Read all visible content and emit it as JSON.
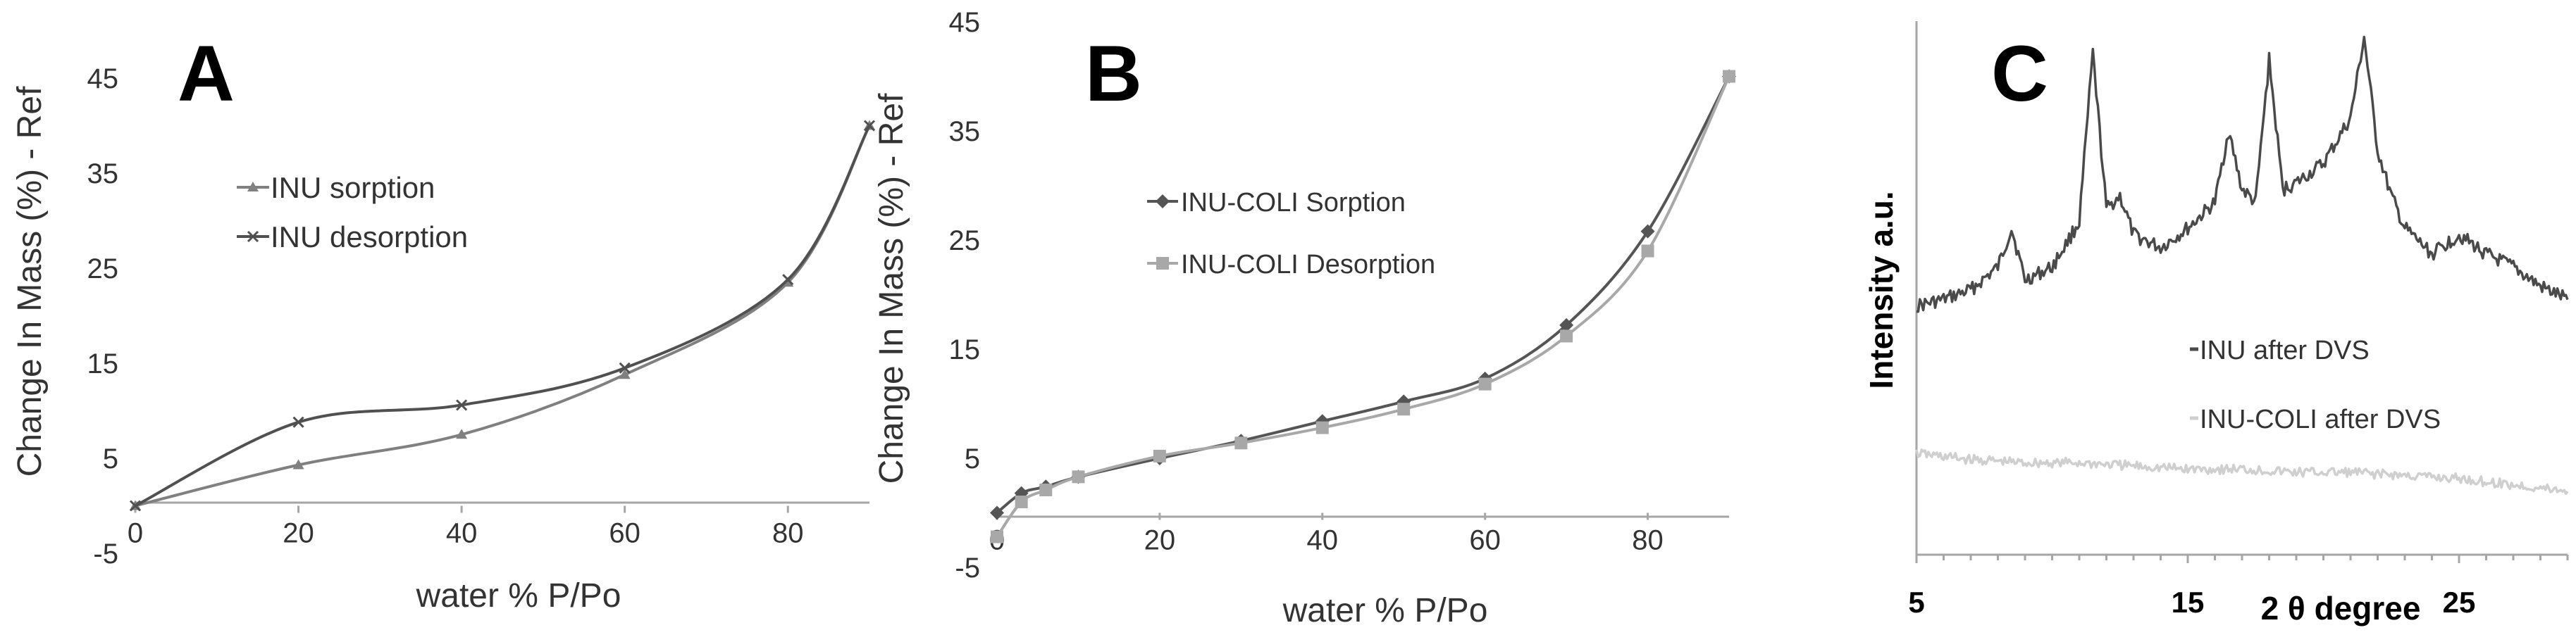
{
  "chart_data": [
    {
      "type": "line",
      "panel_label": "A",
      "xlabel": "water % P/Po",
      "ylabel": "Change In Mass (%) - Ref",
      "xlim": [
        0,
        90
      ],
      "ylim": [
        -5,
        45
      ],
      "xticks": [
        0,
        20,
        40,
        60,
        80
      ],
      "yticks": [
        -5,
        5,
        15,
        25,
        35,
        45
      ],
      "legend_position": "upper-left",
      "series": [
        {
          "name": "INU sorption",
          "marker": "triangle",
          "color": "#808080",
          "x": [
            0,
            20,
            40,
            60,
            80,
            90
          ],
          "y": [
            0,
            4.3,
            7.5,
            13.8,
            23.5,
            40
          ]
        },
        {
          "name": "INU desorption",
          "marker": "x",
          "color": "#505050",
          "x": [
            0,
            20,
            40,
            60,
            80,
            90
          ],
          "y": [
            0,
            8.8,
            10.6,
            14.5,
            23.8,
            40
          ]
        }
      ]
    },
    {
      "type": "line",
      "panel_label": "B",
      "xlabel": "water % P/Po",
      "ylabel": "Change In Mass (%) - Ref",
      "xlim": [
        0,
        90
      ],
      "ylim": [
        -5,
        45
      ],
      "xticks": [
        0,
        20,
        40,
        60,
        80
      ],
      "yticks": [
        -5,
        5,
        15,
        25,
        35,
        45
      ],
      "legend_position": "middle-left",
      "series": [
        {
          "name": "INU-COLI Sorption",
          "marker": "diamond",
          "color": "#555555",
          "x": [
            0,
            3,
            6,
            10,
            20,
            30,
            40,
            50,
            60,
            70,
            80,
            90
          ],
          "y": [
            0,
            1.8,
            2.4,
            3.3,
            5.0,
            6.6,
            8.4,
            10.2,
            12.3,
            17.2,
            25.8,
            40
          ]
        },
        {
          "name": "INU-COLI Desorption",
          "marker": "square",
          "color": "#a8a8a8",
          "x": [
            0,
            3,
            6,
            10,
            20,
            30,
            40,
            50,
            60,
            70,
            80,
            90
          ],
          "y": [
            -2.2,
            1.0,
            2.1,
            3.3,
            5.2,
            6.4,
            7.8,
            9.5,
            11.8,
            16.2,
            24.0,
            40
          ]
        }
      ]
    },
    {
      "type": "line",
      "panel_label": "C",
      "xlabel": "2 θ degree",
      "ylabel": "Intensity a.u.",
      "xlim": [
        5,
        29
      ],
      "xticks": [
        5,
        15,
        25
      ],
      "legend_position": "middle-right",
      "series": [
        {
          "name": "INU after DVS",
          "color": "#4a4a4a",
          "x": [
            5,
            6,
            7,
            8,
            8.5,
            9,
            10,
            11,
            11.5,
            12,
            12.5,
            13,
            14,
            15,
            16,
            16.5,
            17,
            17.5,
            18,
            18.5,
            19,
            20,
            21,
            21.5,
            22,
            22.5,
            23,
            24,
            25,
            26,
            27,
            28,
            29
          ],
          "y": [
            22,
            24,
            27,
            34,
            46,
            30,
            34,
            48,
            100,
            52,
            56,
            44,
            40,
            46,
            54,
            76,
            58,
            54,
            98,
            58,
            60,
            66,
            80,
            105,
            70,
            56,
            46,
            38,
            44,
            38,
            34,
            28,
            24
          ]
        },
        {
          "name": "INU-COLI after DVS",
          "color": "#cfcfcf",
          "x": [
            5,
            7,
            9,
            11,
            13,
            15,
            17,
            19,
            21,
            23,
            25,
            27,
            29
          ],
          "y": [
            12,
            10,
            9,
            9,
            8,
            7,
            7,
            6,
            6,
            5,
            4,
            2,
            0
          ]
        }
      ]
    }
  ]
}
